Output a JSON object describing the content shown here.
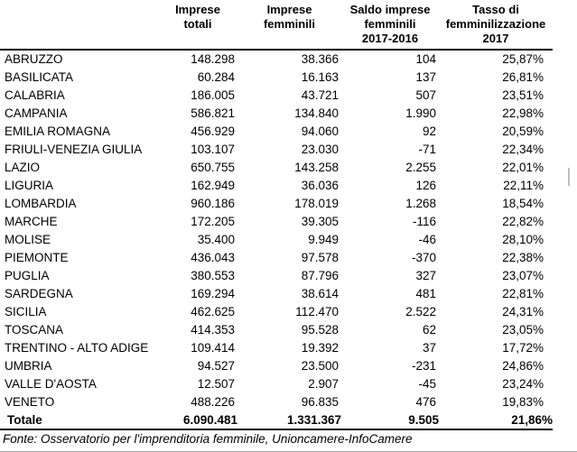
{
  "chart_data": {
    "type": "table",
    "columns": [
      {
        "label": ""
      },
      {
        "label": "Imprese\ntotali"
      },
      {
        "label": "Imprese\nfemminili"
      },
      {
        "label": "Saldo imprese\nfemminili\n2017-2016"
      },
      {
        "label": "Tasso di\nfemminilizzazione\n2017"
      }
    ],
    "rows": [
      [
        "ABRUZZO",
        "148.298",
        "38.366",
        "104",
        "25,87%"
      ],
      [
        "BASILICATA",
        "60.284",
        "16.163",
        "137",
        "26,81%"
      ],
      [
        "CALABRIA",
        "186.005",
        "43.721",
        "507",
        "23,51%"
      ],
      [
        "CAMPANIA",
        "586.821",
        "134.840",
        "1.990",
        "22,98%"
      ],
      [
        "EMILIA ROMAGNA",
        "456.929",
        "94.060",
        "92",
        "20,59%"
      ],
      [
        "FRIULI-VENEZIA GIULIA",
        "103.107",
        "23.030",
        "-71",
        "22,34%"
      ],
      [
        "LAZIO",
        "650.755",
        "143.258",
        "2.255",
        "22,01%"
      ],
      [
        "LIGURIA",
        "162.949",
        "36.036",
        "126",
        "22,11%"
      ],
      [
        "LOMBARDIA",
        "960.186",
        "178.019",
        "1.268",
        "18,54%"
      ],
      [
        "MARCHE",
        "172.205",
        "39.305",
        "-116",
        "22,82%"
      ],
      [
        "MOLISE",
        "35.400",
        "9.949",
        "-46",
        "28,10%"
      ],
      [
        "PIEMONTE",
        "436.043",
        "97.578",
        "-370",
        "22,38%"
      ],
      [
        "PUGLIA",
        "380.553",
        "87.796",
        "327",
        "23,07%"
      ],
      [
        "SARDEGNA",
        "169.294",
        "38.614",
        "481",
        "22,81%"
      ],
      [
        "SICILIA",
        "462.625",
        "112.470",
        "2.522",
        "24,31%"
      ],
      [
        "TOSCANA",
        "414.353",
        "95.528",
        "62",
        "23,05%"
      ],
      [
        "TRENTINO - ALTO ADIGE",
        "109.414",
        "19.392",
        "37",
        "17,72%"
      ],
      [
        "UMBRIA",
        "94.527",
        "23.500",
        "-231",
        "24,86%"
      ],
      [
        "VALLE D'AOSTA",
        "12.507",
        "2.907",
        "-45",
        "23,24%"
      ],
      [
        "VENETO",
        "488.226",
        "96.835",
        "476",
        "19,83%"
      ]
    ],
    "total_row": [
      "Totale",
      "6.090.481",
      "1.331.367",
      "9.505",
      "21,86%"
    ],
    "source_note": "Fonte: Osservatorio per l'imprenditoria femminile, Unioncamere-InfoCamere"
  },
  "colors": {
    "text": "#000000",
    "strong_border": "#000000",
    "bottom_rule": "#a6a6a6",
    "scrollbar_thumb": "#bfbfbf"
  }
}
